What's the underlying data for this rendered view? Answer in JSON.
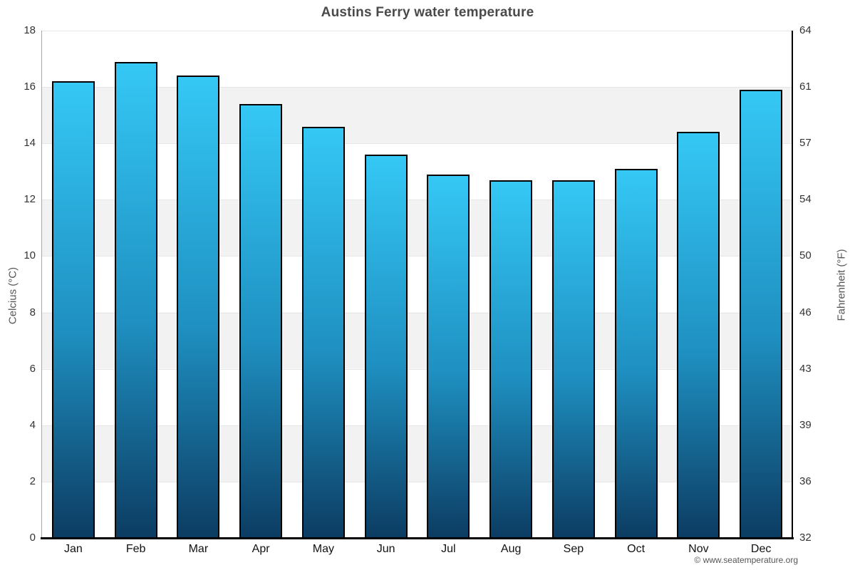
{
  "title": "Austins Ferry water temperature",
  "credits": "© www.seatemperature.org",
  "chart_data": {
    "type": "bar",
    "title": "Austins Ferry water temperature",
    "categories": [
      "Jan",
      "Feb",
      "Mar",
      "Apr",
      "May",
      "Jun",
      "Jul",
      "Aug",
      "Sep",
      "Oct",
      "Nov",
      "Dec"
    ],
    "values": [
      16.2,
      16.9,
      16.4,
      15.4,
      14.6,
      13.6,
      12.9,
      12.7,
      12.7,
      13.1,
      14.4,
      15.9
    ],
    "unit": "°C",
    "ylabel_left": "Celcius (°C)",
    "ylabel_right": "Fahrenheit (°F)",
    "yticks_left_celsius": [
      0,
      2,
      4,
      6,
      8,
      10,
      12,
      14,
      16,
      18
    ],
    "yticks_right_fahrenheit": [
      32,
      36,
      39,
      43,
      46,
      50,
      54,
      57,
      61,
      64
    ],
    "ylim": [
      0,
      18
    ],
    "legend": "none",
    "grid": "horizontal gridlines every 2°C with alternating white/gray background bands",
    "colors": {
      "bar_top": "#35c8f5",
      "bar_bottom": "#0c3c62",
      "bar_border": "#000000",
      "band": "#f2f2f2",
      "gridline": "#e6e6e6",
      "title_text": "#4a4a4a",
      "axis_text": "#333333",
      "credits_text": "#555555"
    }
  }
}
